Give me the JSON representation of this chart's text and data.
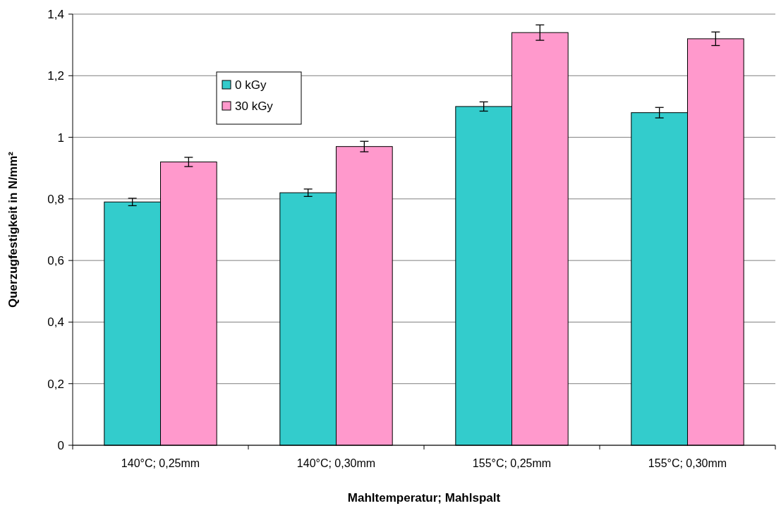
{
  "chart_data": {
    "type": "bar",
    "xlabel": "Mahltemperatur; Mahlspalt",
    "ylabel": "Querzugfestigkeit in N/mm²",
    "categories": [
      "140°C; 0,25mm",
      "140°C; 0,30mm",
      "155°C; 0,25mm",
      "155°C; 0,30mm"
    ],
    "series": [
      {
        "name": "0 kGy",
        "color": "#33cccc",
        "values": [
          0.79,
          0.82,
          1.1,
          1.08
        ],
        "errors": [
          0.012,
          0.012,
          0.015,
          0.017
        ]
      },
      {
        "name": "30 kGy",
        "color": "#ff99cc",
        "values": [
          0.92,
          0.97,
          1.34,
          1.32
        ],
        "errors": [
          0.015,
          0.017,
          0.025,
          0.022
        ]
      }
    ],
    "ylim": [
      0,
      1.4
    ],
    "yticks": [
      0,
      {
        "value": 0.2,
        "label": "0,2"
      },
      {
        "value": 0.4,
        "label": "0,4"
      },
      {
        "value": 0.6,
        "label": "0,6"
      },
      {
        "value": 0.8,
        "label": "0,8"
      },
      1,
      {
        "value": 1.2,
        "label": "1,2"
      },
      {
        "value": 1.4,
        "label": "1,4"
      }
    ],
    "grid": "y",
    "legend": "top left"
  }
}
